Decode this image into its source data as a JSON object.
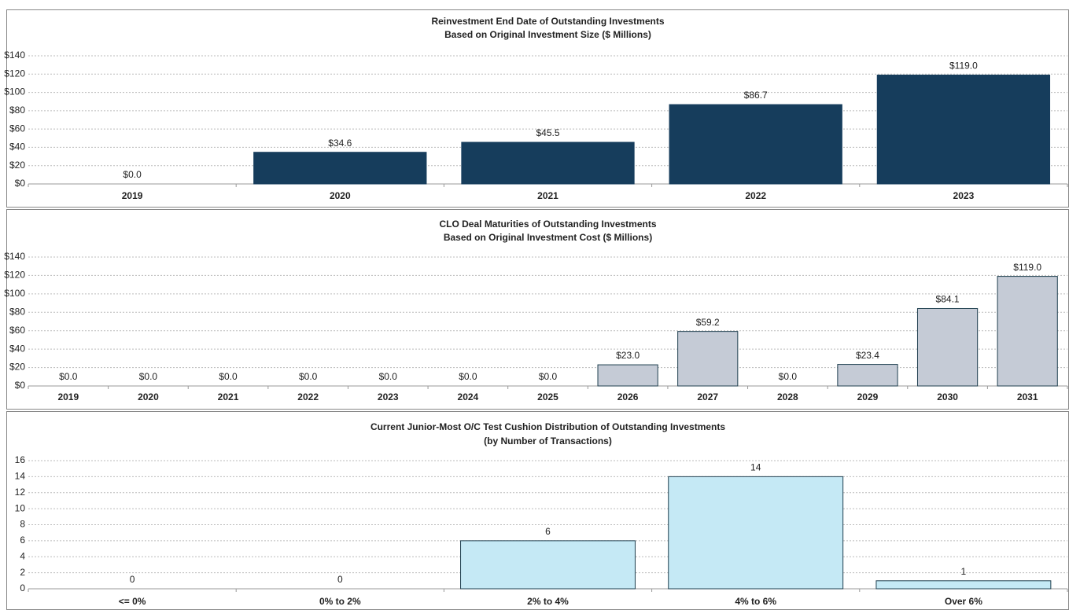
{
  "chart_data": [
    {
      "type": "bar",
      "title": "Reinvestment End Date of Outstanding Investments",
      "subtitle": "Based on Original Investment Size ($ Millions)",
      "categories": [
        "2019",
        "2020",
        "2021",
        "2022",
        "2023"
      ],
      "values": [
        0,
        34.6,
        45.5,
        86.7,
        119.0
      ],
      "value_labels": [
        "$0.0",
        "$34.6",
        "$45.5",
        "$86.7",
        "$119.0"
      ],
      "color": "#163d5c",
      "edge_color": "#163d5c",
      "ylim": [
        0,
        140
      ],
      "yticks": [
        {
          "value": 0,
          "label": "$0"
        },
        {
          "value": 20,
          "label": "$20"
        },
        {
          "value": 40,
          "label": "$40"
        },
        {
          "value": 60,
          "label": "$60"
        },
        {
          "value": 80,
          "label": "$80"
        },
        {
          "value": 100,
          "label": "$100"
        },
        {
          "value": 120,
          "label": "$120"
        },
        {
          "value": 140,
          "label": "$140"
        }
      ],
      "grid": true
    },
    {
      "type": "bar",
      "title": "CLO Deal Maturities of Outstanding Investments",
      "subtitle": "Based on Original Investment Cost ($ Millions)",
      "categories": [
        "2019",
        "2020",
        "2021",
        "2022",
        "2023",
        "2024",
        "2025",
        "2026",
        "2027",
        "2028",
        "2029",
        "2030",
        "2031"
      ],
      "values": [
        0,
        0,
        0,
        0,
        0,
        0,
        0,
        23.0,
        59.2,
        0,
        23.4,
        84.1,
        119.0
      ],
      "value_labels": [
        "$0.0",
        "$0.0",
        "$0.0",
        "$0.0",
        "$0.0",
        "$0.0",
        "$0.0",
        "$23.0",
        "$59.2",
        "$0.0",
        "$23.4",
        "$84.1",
        "$119.0"
      ],
      "color": "#c5cbd6",
      "edge_color": "#1f3f4f",
      "ylim": [
        0,
        140
      ],
      "yticks": [
        {
          "value": 0,
          "label": "$0"
        },
        {
          "value": 20,
          "label": "$20"
        },
        {
          "value": 40,
          "label": "$40"
        },
        {
          "value": 60,
          "label": "$60"
        },
        {
          "value": 80,
          "label": "$80"
        },
        {
          "value": 100,
          "label": "$100"
        },
        {
          "value": 120,
          "label": "$120"
        },
        {
          "value": 140,
          "label": "$140"
        }
      ],
      "grid": true
    },
    {
      "type": "bar",
      "title": "Current Junior-Most O/C Test Cushion Distribution  of Outstanding Investments",
      "subtitle": "(by Number of Transactions)",
      "categories": [
        "<= 0%",
        "0% to 2%",
        "2% to 4%",
        "4% to 6%",
        "Over 6%"
      ],
      "values": [
        0,
        0,
        6,
        14,
        1
      ],
      "color": "#c5e9f5",
      "edge_color": "#1f3f4f",
      "ylim": [
        0,
        16
      ],
      "yticks": [
        0,
        2,
        4,
        6,
        8,
        10,
        12,
        14,
        16
      ],
      "grid": true
    }
  ]
}
